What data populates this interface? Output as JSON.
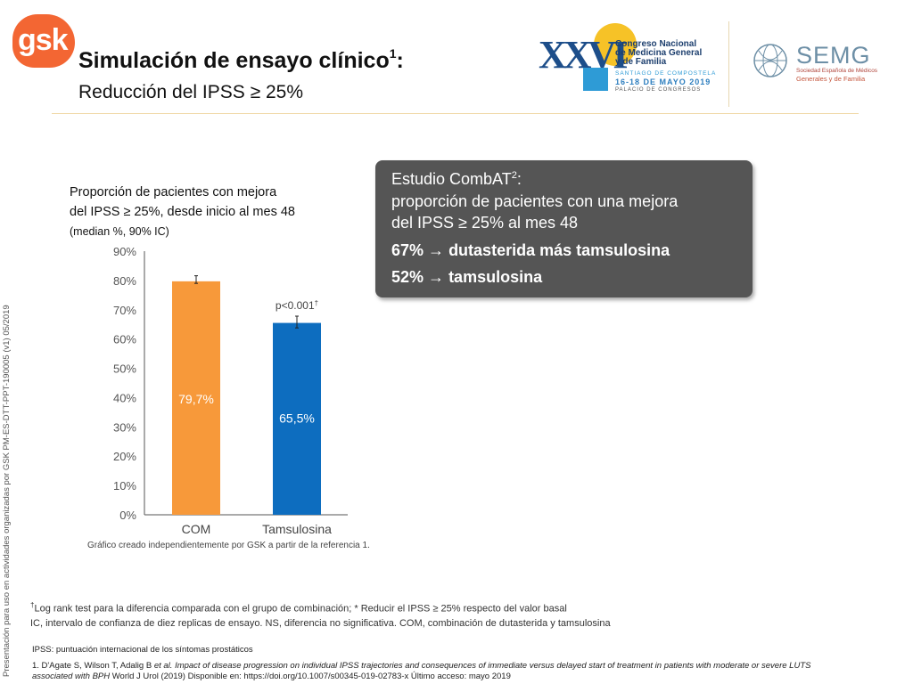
{
  "header": {
    "logo_text": "gsk",
    "title": "Simulación de ensayo clínico",
    "title_sup": "1",
    "title_suffix": ":",
    "subtitle": "Reducción del IPSS ≥ 25%"
  },
  "congress_logo": {
    "roman": "XXVI",
    "line1": "Congreso Nacional",
    "line2": "de Medicina General",
    "line3": "y de Familia",
    "city": "SANTIAGO DE COMPOSTELA",
    "dates": "16-18 DE MAYO 2019",
    "venue": "PALACIO DE CONGRESOS"
  },
  "semg_logo": {
    "name": "SEMG",
    "sub1": "Sociedad Española de Médicos",
    "sub2": "Generales y de Familia"
  },
  "side_note": "Presentación para uso en actividades organizadas por GSK  PM-ES-DTT-PPT-190005 (v1) 05/2019",
  "chart_title": {
    "line1": "Proporción de pacientes con mejora",
    "line2": "del IPSS ≥ 25%, desde inicio al mes 48",
    "line3": "(median %, 90% IC)"
  },
  "chart_data": {
    "type": "bar",
    "categories": [
      "COM",
      "Tamsulosina"
    ],
    "values": [
      79.7,
      65.5
    ],
    "value_labels": [
      "79,7%",
      "65,5%"
    ],
    "error_bars": [
      [
        79.0,
        81.6
      ],
      [
        63.8,
        67.8
      ]
    ],
    "colors": [
      "#f7993a",
      "#0d6dbf"
    ],
    "ylim": [
      0,
      90
    ],
    "yticks": [
      0,
      10,
      20,
      30,
      40,
      50,
      60,
      70,
      80,
      90
    ],
    "ytick_labels": [
      "0%",
      "10%",
      "20%",
      "30%",
      "40%",
      "50%",
      "60%",
      "70%",
      "80%",
      "90%"
    ],
    "annotation": "p<0.001",
    "annotation_sup": "†",
    "grid": false
  },
  "chart_credit": "Gráfico creado independientemente por GSK a partir de la referencia 1.",
  "callout": {
    "line1": "Estudio CombAT",
    "line1_sup": "2",
    "line1_suffix": ":",
    "line2": "proporción de pacientes con una mejora",
    "line3": "del IPSS ≥ 25% al mes 48",
    "line4_value": "67%",
    "line4_text": "dutasterida más tamsulosina",
    "line5_value": "52%",
    "line5_text": "tamsulosina",
    "arrow": "→"
  },
  "footnotes": {
    "fn1_sup": "†",
    "fn1": "Log rank test para la diferencia comparada con el grupo de combinación; * Reducir el IPSS ≥ 25% respecto del valor basal",
    "fn2": "IC, intervalo de confianza de diez replicas de ensayo. NS, diferencia no significativa. COM, combinación de dutasterida y tamsulosina",
    "fn3": "IPSS: puntuación internacional de los síntomas prostáticos",
    "ref_a": "1. D'Agate S, Wilson T, Adalig B ",
    "ref_b": "et al. Impact of disease progression on individual IPSS trajectories and consequences of immediate versus delayed start of treatment in patients with moderate or severe LUTS associated with BPH",
    "ref_c": "  World J Urol (2019) Disponible en: https://doi.org/10.1007/s00345-019-02783-x Último acceso: mayo 2019"
  }
}
